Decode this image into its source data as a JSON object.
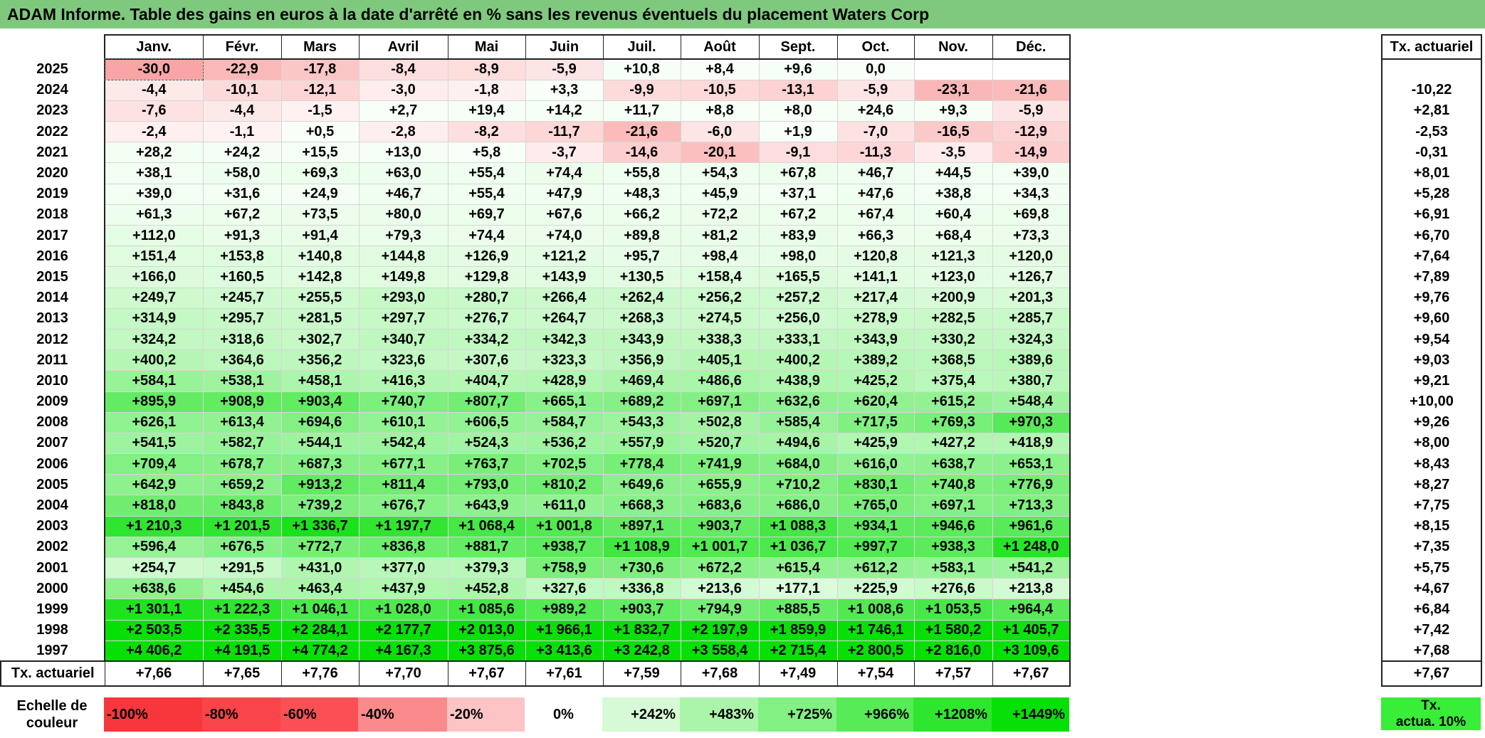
{
  "title": "ADAM Informe. Table des gains en euros à la date d'arrêté en % sans les revenus éventuels du placement Waters Corp",
  "months": [
    "Janv.",
    "Févr.",
    "Mars",
    "Avril",
    "Mai",
    "Juin",
    "Juil.",
    "Août",
    "Sept.",
    "Oct.",
    "Nov.",
    "Déc."
  ],
  "side_header": "Tx. actuariel",
  "rows": [
    {
      "year": "2025",
      "values": [
        "-30,0",
        "-22,9",
        "-17,8",
        "-8,4",
        "-8,9",
        "-5,9",
        "+10,8",
        "+8,4",
        "+9,6",
        "0,0",
        "",
        ""
      ],
      "rate": ""
    },
    {
      "year": "2024",
      "values": [
        "-4,4",
        "-10,1",
        "-12,1",
        "-3,0",
        "-1,8",
        "+3,3",
        "-9,9",
        "-10,5",
        "-13,1",
        "-5,9",
        "-23,1",
        "-21,6"
      ],
      "rate": "-10,22"
    },
    {
      "year": "2023",
      "values": [
        "-7,6",
        "-4,4",
        "-1,5",
        "+2,7",
        "+19,4",
        "+14,2",
        "+11,7",
        "+8,8",
        "+8,0",
        "+24,6",
        "+9,3",
        "-5,9"
      ],
      "rate": "+2,81"
    },
    {
      "year": "2022",
      "values": [
        "-2,4",
        "-1,1",
        "+0,5",
        "-2,8",
        "-8,2",
        "-11,7",
        "-21,6",
        "-6,0",
        "+1,9",
        "-7,0",
        "-16,5",
        "-12,9"
      ],
      "rate": "-2,53"
    },
    {
      "year": "2021",
      "values": [
        "+28,2",
        "+24,2",
        "+15,5",
        "+13,0",
        "+5,8",
        "-3,7",
        "-14,6",
        "-20,1",
        "-9,1",
        "-11,3",
        "-3,5",
        "-14,9"
      ],
      "rate": "-0,31"
    },
    {
      "year": "2020",
      "values": [
        "+38,1",
        "+58,0",
        "+69,3",
        "+63,0",
        "+55,4",
        "+74,4",
        "+55,8",
        "+54,3",
        "+67,8",
        "+46,7",
        "+44,5",
        "+39,0"
      ],
      "rate": "+8,01"
    },
    {
      "year": "2019",
      "values": [
        "+39,0",
        "+31,6",
        "+24,9",
        "+46,7",
        "+55,4",
        "+47,9",
        "+48,3",
        "+45,9",
        "+37,1",
        "+47,6",
        "+38,8",
        "+34,3"
      ],
      "rate": "+5,28"
    },
    {
      "year": "2018",
      "values": [
        "+61,3",
        "+67,2",
        "+73,5",
        "+80,0",
        "+69,7",
        "+67,6",
        "+66,2",
        "+72,2",
        "+67,2",
        "+67,4",
        "+60,4",
        "+69,8"
      ],
      "rate": "+6,91"
    },
    {
      "year": "2017",
      "values": [
        "+112,0",
        "+91,3",
        "+91,4",
        "+79,3",
        "+74,4",
        "+74,0",
        "+89,8",
        "+81,2",
        "+83,9",
        "+66,3",
        "+68,4",
        "+73,3"
      ],
      "rate": "+6,70"
    },
    {
      "year": "2016",
      "values": [
        "+151,4",
        "+153,8",
        "+140,8",
        "+144,8",
        "+126,9",
        "+121,2",
        "+95,7",
        "+98,4",
        "+98,0",
        "+120,8",
        "+121,3",
        "+120,0"
      ],
      "rate": "+7,64"
    },
    {
      "year": "2015",
      "values": [
        "+166,0",
        "+160,5",
        "+142,8",
        "+149,8",
        "+129,8",
        "+143,9",
        "+130,5",
        "+158,4",
        "+165,5",
        "+141,1",
        "+123,0",
        "+126,7"
      ],
      "rate": "+7,89"
    },
    {
      "year": "2014",
      "values": [
        "+249,7",
        "+245,7",
        "+255,5",
        "+293,0",
        "+280,7",
        "+266,4",
        "+262,4",
        "+256,2",
        "+257,2",
        "+217,4",
        "+200,9",
        "+201,3"
      ],
      "rate": "+9,76"
    },
    {
      "year": "2013",
      "values": [
        "+314,9",
        "+295,7",
        "+281,5",
        "+297,7",
        "+276,7",
        "+264,7",
        "+268,3",
        "+274,5",
        "+256,0",
        "+278,9",
        "+282,5",
        "+285,7"
      ],
      "rate": "+9,60"
    },
    {
      "year": "2012",
      "values": [
        "+324,2",
        "+318,6",
        "+302,7",
        "+340,7",
        "+334,2",
        "+342,3",
        "+343,9",
        "+338,3",
        "+333,1",
        "+343,9",
        "+330,2",
        "+324,3"
      ],
      "rate": "+9,54"
    },
    {
      "year": "2011",
      "values": [
        "+400,2",
        "+364,6",
        "+356,2",
        "+323,6",
        "+307,6",
        "+323,3",
        "+356,9",
        "+405,1",
        "+400,2",
        "+389,2",
        "+368,5",
        "+389,6"
      ],
      "rate": "+9,03"
    },
    {
      "year": "2010",
      "values": [
        "+584,1",
        "+538,1",
        "+458,1",
        "+416,3",
        "+404,7",
        "+428,9",
        "+469,4",
        "+486,6",
        "+438,9",
        "+425,2",
        "+375,4",
        "+380,7"
      ],
      "rate": "+9,21"
    },
    {
      "year": "2009",
      "values": [
        "+895,9",
        "+908,9",
        "+903,4",
        "+740,7",
        "+807,7",
        "+665,1",
        "+689,2",
        "+697,1",
        "+632,6",
        "+620,4",
        "+615,2",
        "+548,4"
      ],
      "rate": "+10,00"
    },
    {
      "year": "2008",
      "values": [
        "+626,1",
        "+613,4",
        "+694,6",
        "+610,1",
        "+606,5",
        "+584,7",
        "+543,3",
        "+502,8",
        "+585,4",
        "+717,5",
        "+769,3",
        "+970,3"
      ],
      "rate": "+9,26"
    },
    {
      "year": "2007",
      "values": [
        "+541,5",
        "+582,7",
        "+544,1",
        "+542,4",
        "+524,3",
        "+536,2",
        "+557,9",
        "+520,7",
        "+494,6",
        "+425,9",
        "+427,2",
        "+418,9"
      ],
      "rate": "+8,00"
    },
    {
      "year": "2006",
      "values": [
        "+709,4",
        "+678,7",
        "+687,3",
        "+677,1",
        "+763,7",
        "+702,5",
        "+778,4",
        "+741,9",
        "+684,0",
        "+616,0",
        "+638,7",
        "+653,1"
      ],
      "rate": "+8,43"
    },
    {
      "year": "2005",
      "values": [
        "+642,9",
        "+659,2",
        "+913,2",
        "+811,4",
        "+793,0",
        "+810,2",
        "+649,6",
        "+655,9",
        "+710,2",
        "+830,1",
        "+740,8",
        "+776,9"
      ],
      "rate": "+8,27"
    },
    {
      "year": "2004",
      "values": [
        "+818,0",
        "+843,8",
        "+739,2",
        "+676,7",
        "+643,9",
        "+611,0",
        "+668,3",
        "+683,6",
        "+686,0",
        "+765,0",
        "+697,1",
        "+713,3"
      ],
      "rate": "+7,75"
    },
    {
      "year": "2003",
      "values": [
        "+1 210,3",
        "+1 201,5",
        "+1 336,7",
        "+1 197,7",
        "+1 068,4",
        "+1 001,8",
        "+897,1",
        "+903,7",
        "+1 088,3",
        "+934,1",
        "+946,6",
        "+961,6"
      ],
      "rate": "+8,15"
    },
    {
      "year": "2002",
      "values": [
        "+596,4",
        "+676,5",
        "+772,7",
        "+836,8",
        "+881,7",
        "+938,7",
        "+1 108,9",
        "+1 001,7",
        "+1 036,7",
        "+997,7",
        "+938,3",
        "+1 248,0"
      ],
      "rate": "+7,35"
    },
    {
      "year": "2001",
      "values": [
        "+254,7",
        "+291,5",
        "+431,0",
        "+377,0",
        "+379,3",
        "+758,9",
        "+730,6",
        "+672,2",
        "+615,4",
        "+612,2",
        "+583,1",
        "+541,2"
      ],
      "rate": "+5,75"
    },
    {
      "year": "2000",
      "values": [
        "+638,6",
        "+454,6",
        "+463,4",
        "+437,9",
        "+452,8",
        "+327,6",
        "+336,8",
        "+213,6",
        "+177,1",
        "+225,9",
        "+276,6",
        "+213,8"
      ],
      "rate": "+4,67"
    },
    {
      "year": "1999",
      "values": [
        "+1 301,1",
        "+1 222,3",
        "+1 046,1",
        "+1 028,0",
        "+1 085,6",
        "+989,2",
        "+903,7",
        "+794,9",
        "+885,5",
        "+1 008,6",
        "+1 053,5",
        "+964,4"
      ],
      "rate": "+6,84"
    },
    {
      "year": "1998",
      "values": [
        "+2 503,5",
        "+2 335,5",
        "+2 284,1",
        "+2 177,7",
        "+2 013,0",
        "+1 966,1",
        "+1 832,7",
        "+2 197,9",
        "+1 859,9",
        "+1 746,1",
        "+1 580,2",
        "+1 405,7"
      ],
      "rate": "+7,42"
    },
    {
      "year": "1997",
      "values": [
        "+4 406,2",
        "+4 191,5",
        "+4 774,2",
        "+4 167,3",
        "+3 875,6",
        "+3 413,6",
        "+3 242,8",
        "+3 558,4",
        "+2 715,4",
        "+2 800,5",
        "+2 816,0",
        "+3 109,6"
      ],
      "rate": "+7,68"
    }
  ],
  "footer": {
    "label": "Tx. actuariel",
    "values": [
      "+7,66",
      "+7,65",
      "+7,76",
      "+7,70",
      "+7,67",
      "+7,61",
      "+7,59",
      "+7,68",
      "+7,49",
      "+7,54",
      "+7,57",
      "+7,67"
    ],
    "rate": "+7,67"
  },
  "legend": {
    "label_line1": "Echelle de",
    "label_line2": "couleur",
    "swatches": [
      {
        "label": "-100%",
        "color": "#f8373c",
        "kind": "neg"
      },
      {
        "label": "-80%",
        "color": "#f94449",
        "kind": "neg"
      },
      {
        "label": "-60%",
        "color": "#fa5055",
        "kind": "neg"
      },
      {
        "label": "-40%",
        "color": "#fb8a8d",
        "kind": "neg"
      },
      {
        "label": "-20%",
        "color": "#fdc4c5",
        "kind": "neg"
      },
      {
        "label": "0%",
        "color": "#ffffff",
        "kind": "mid"
      },
      {
        "label": "+242%",
        "color": "#d5fad5",
        "kind": "pos"
      },
      {
        "label": "+483%",
        "color": "#abf5ab",
        "kind": "pos"
      },
      {
        "label": "+725%",
        "color": "#82f082",
        "kind": "pos"
      },
      {
        "label": "+966%",
        "color": "#58eb58",
        "kind": "pos"
      },
      {
        "label": "+1208%",
        "color": "#2ee62e",
        "kind": "pos"
      },
      {
        "label": "+1449%",
        "color": "#07e007",
        "kind": "pos"
      }
    ],
    "right_line1": "Tx.",
    "right_line2": "actua. 10%",
    "right_color": "#38ee38"
  },
  "colors": {
    "title_bar": "#7fc97f",
    "negative": "#f8373c",
    "positive": "#07e007",
    "neutral": "#ffffff"
  }
}
